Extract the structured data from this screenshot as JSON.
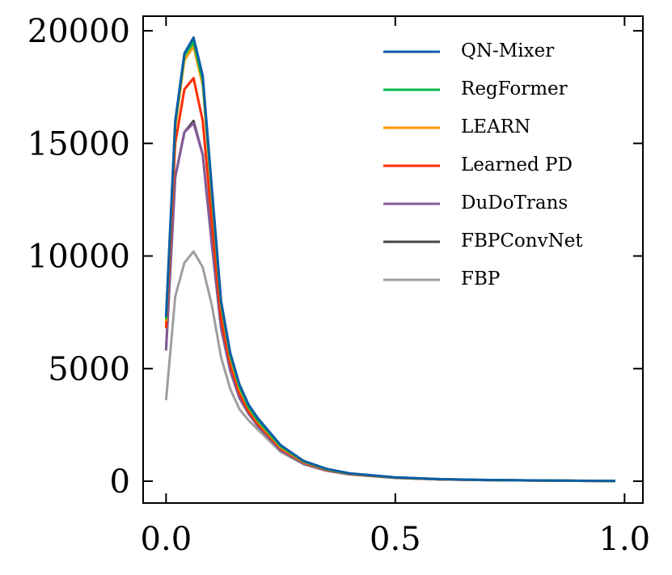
{
  "chart_data": {
    "type": "line",
    "x": [
      0,
      0.02,
      0.04,
      0.06,
      0.08,
      0.1,
      0.12,
      0.14,
      0.16,
      0.18,
      0.2,
      0.25,
      0.3,
      0.35,
      0.4,
      0.5,
      0.6,
      0.7,
      0.8,
      0.9,
      0.98
    ],
    "series": [
      {
        "name": "QN-Mixer",
        "color": "#0C5DA5",
        "values": [
          7300,
          16000,
          19000,
          19700,
          18000,
          13000,
          8000,
          5700,
          4300,
          3400,
          2800,
          1600,
          900,
          550,
          350,
          170,
          90,
          55,
          35,
          20,
          10
        ]
      },
      {
        "name": "RegFormer",
        "color": "#00B945",
        "values": [
          7200,
          15900,
          18900,
          19500,
          17800,
          12800,
          7900,
          5600,
          4200,
          3300,
          2700,
          1550,
          880,
          530,
          340,
          165,
          88,
          53,
          34,
          19,
          10
        ]
      },
      {
        "name": "LEARN",
        "color": "#FF9500",
        "values": [
          7100,
          15700,
          18700,
          19300,
          17600,
          12600,
          7800,
          5500,
          4100,
          3250,
          2650,
          1500,
          860,
          520,
          330,
          160,
          85,
          52,
          33,
          19,
          10
        ]
      },
      {
        "name": "Learned PD",
        "color": "#FF2C00",
        "values": [
          6800,
          15000,
          17400,
          17900,
          16000,
          11500,
          7200,
          5200,
          3900,
          3100,
          2550,
          1450,
          830,
          500,
          320,
          155,
          82,
          50,
          32,
          18,
          9
        ]
      },
      {
        "name": "DuDoTrans",
        "color": "#845B97",
        "values": [
          5800,
          13500,
          15500,
          15900,
          14500,
          10500,
          6800,
          4900,
          3700,
          3000,
          2450,
          1380,
          790,
          480,
          310,
          150,
          80,
          48,
          31,
          18,
          9
        ]
      },
      {
        "name": "FBPConvNet",
        "color": "#474747",
        "values": [
          5850,
          13500,
          15500,
          16000,
          14500,
          10500,
          6800,
          4900,
          3700,
          3000,
          2450,
          1380,
          790,
          480,
          310,
          150,
          80,
          48,
          31,
          18,
          9
        ]
      },
      {
        "name": "FBP",
        "color": "#9E9E9E",
        "values": [
          3600,
          8200,
          9700,
          10200,
          9500,
          7800,
          5500,
          4100,
          3200,
          2700,
          2300,
          1300,
          750,
          460,
          300,
          145,
          78,
          47,
          30,
          17,
          9
        ]
      }
    ],
    "xlim": [
      -0.05,
      1.04
    ],
    "ylim": [
      -970,
      20650
    ],
    "xticks": [
      {
        "value": 0,
        "label": "0.0"
      },
      0.5,
      {
        "value": 1,
        "label": "1.0"
      }
    ],
    "yticks": [
      0,
      5000,
      10000,
      15000,
      20000
    ],
    "legend": "upper-right"
  }
}
